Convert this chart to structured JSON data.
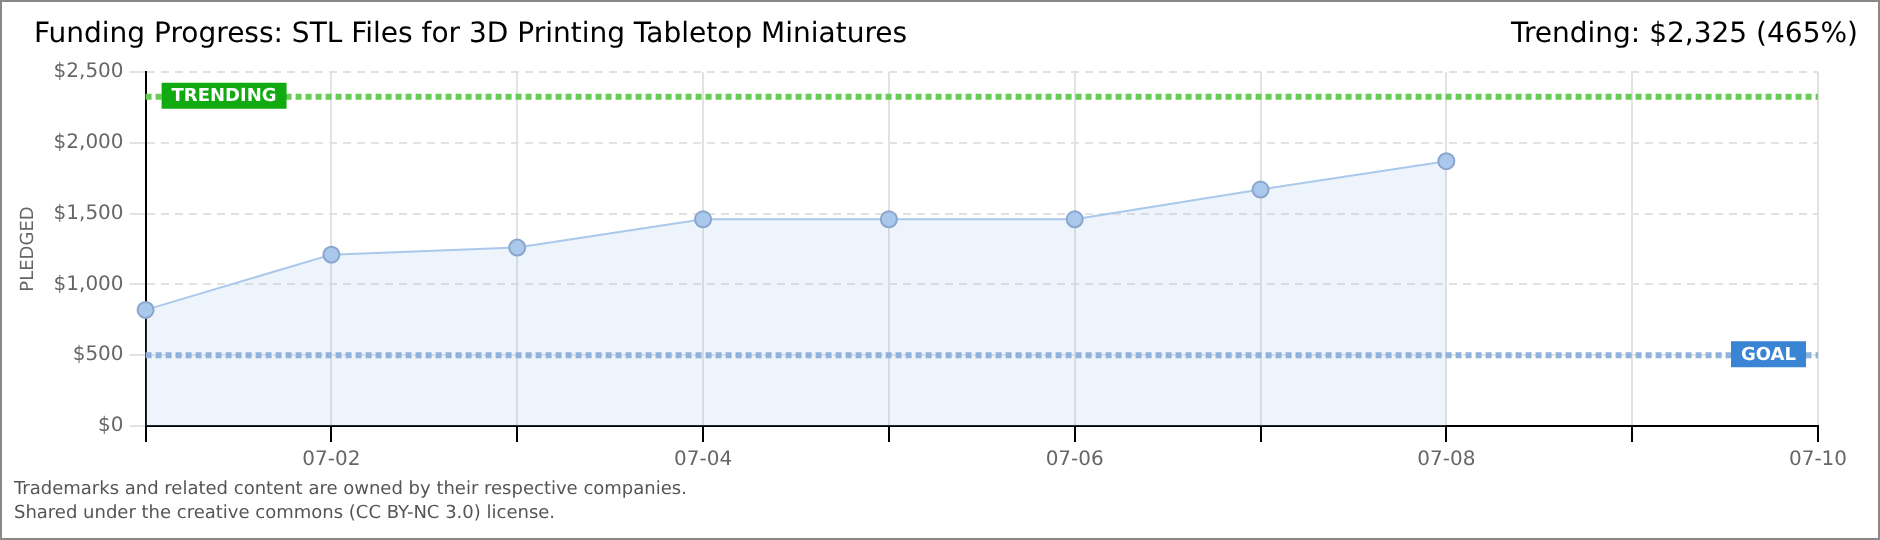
{
  "chart_data": {
    "type": "area",
    "title": "Funding Progress: STL Files for 3D Printing Tabletop Miniatures",
    "ylabel": "PLEDGED",
    "annotations": [
      "Trending: $2,325 (465%)",
      "Trademarks and related content are owned by their respective companies.",
      "Shared under the creative commons (CC BY-NC 3.0) license."
    ],
    "categories": [
      null,
      "07-02",
      null,
      "07-04",
      null,
      "07-06",
      null,
      "07-08",
      null,
      "07-10"
    ],
    "values": [
      820,
      1210,
      1260,
      1460,
      1460,
      1460,
      1670,
      1870,
      null,
      null
    ],
    "color": "#a9c8ec",
    "ylim": [
      0,
      2500
    ],
    "yticks": [
      {
        "value": 0,
        "label": "$0"
      },
      {
        "value": 500,
        "label": "$500"
      },
      {
        "value": 1000,
        "label": "$1,000"
      },
      {
        "value": 1500,
        "label": "$1,500"
      },
      {
        "value": 2000,
        "label": "$2,000"
      },
      {
        "value": 2500,
        "label": "$2,500"
      }
    ],
    "ref_lines": [
      {
        "axis": "y",
        "value": 2325,
        "label": "TRENDING",
        "color": "#66cc55",
        "line_style": "dotted"
      },
      {
        "axis": "y",
        "value": 500,
        "label": "GOAL",
        "color": "#8fb3dd",
        "line_style": "dotted"
      }
    ],
    "grid": true,
    "marker": "circle",
    "legend": false
  }
}
